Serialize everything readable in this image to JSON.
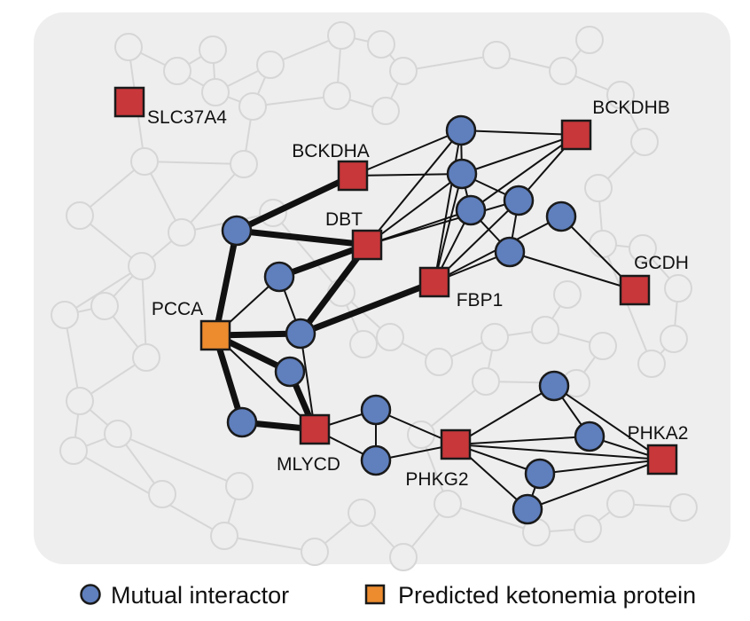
{
  "colors": {
    "panel_bg": "#eeeeee",
    "bg_graph": "#d6d6d6",
    "edge": "#111111",
    "protein_fill": "#c8373a",
    "predicted_fill": "#ec8c2f",
    "interactor_fill": "#5f7fbd",
    "outline": "#1a1a1a"
  },
  "proteins": [
    {
      "id": "SLC37A4",
      "label": "SLC37A4",
      "type": "known"
    },
    {
      "id": "BCKDHA",
      "label": "BCKDHA",
      "type": "known"
    },
    {
      "id": "BCKDHB",
      "label": "BCKDHB",
      "type": "known"
    },
    {
      "id": "DBT",
      "label": "DBT",
      "type": "known"
    },
    {
      "id": "FBP1",
      "label": "FBP1",
      "type": "known"
    },
    {
      "id": "GCDH",
      "label": "GCDH",
      "type": "known"
    },
    {
      "id": "PCCA",
      "label": "PCCA",
      "type": "predicted"
    },
    {
      "id": "MLYCD",
      "label": "MLYCD",
      "type": "known"
    },
    {
      "id": "PHKG2",
      "label": "PHKG2",
      "type": "known"
    },
    {
      "id": "PHKA2",
      "label": "PHKA2",
      "type": "known"
    }
  ],
  "legend": {
    "interactor_label": "Mutual interactor",
    "predicted_label": "Predicted ketonemia protein"
  }
}
